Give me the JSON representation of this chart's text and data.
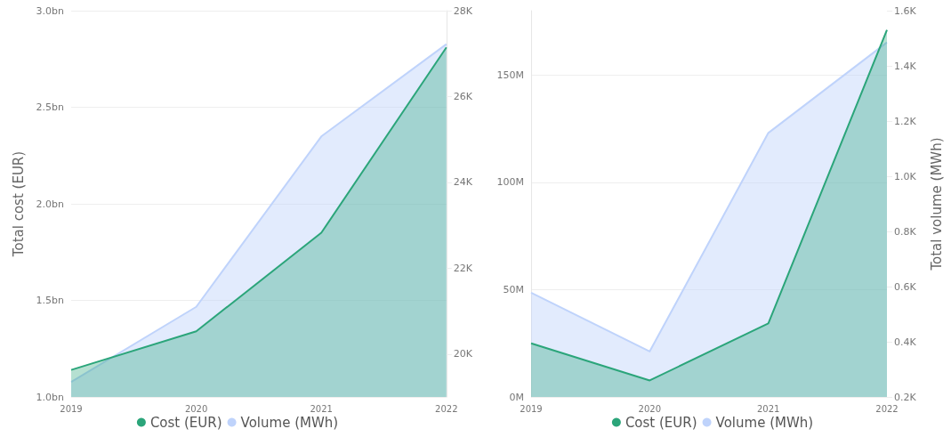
{
  "chart_data": [
    {
      "type": "area",
      "ylabel": "Total cost (EUR)",
      "categories": [
        "2019",
        "2020",
        "2021",
        "2022"
      ],
      "series": [
        {
          "name": "Cost (EUR)",
          "color": "#2ba57a",
          "values": [
            1140000000,
            1340000000,
            1850000000,
            2810000000
          ]
        },
        {
          "name": "Volume (MWh)",
          "color": "#bfd3fb",
          "axis": "y2",
          "values": [
            19350,
            21100,
            25070,
            27220
          ]
        }
      ],
      "ylim": [
        1000000000,
        3000000000
      ],
      "yticks": [
        {
          "value": 1000000000,
          "label": "1.0bn"
        },
        {
          "value": 1500000000,
          "label": "1.5bn"
        },
        {
          "value": 2000000000,
          "label": "2.0bn"
        },
        {
          "value": 2500000000,
          "label": "2.5bn"
        },
        {
          "value": 3000000000,
          "label": "3.0bn"
        }
      ],
      "y2lim": [
        19000,
        28000
      ],
      "y2ticks": [
        {
          "value": 20000,
          "label": "20K"
        },
        {
          "value": 22000,
          "label": "22K"
        },
        {
          "value": 24000,
          "label": "24K"
        },
        {
          "value": 26000,
          "label": "26K"
        },
        {
          "value": 28000,
          "label": "28K"
        }
      ],
      "grid": "y",
      "legend": "bottom"
    },
    {
      "type": "area",
      "y2label": "Total volume (MWh)",
      "categories": [
        "2019",
        "2020",
        "2021",
        "2022"
      ],
      "series": [
        {
          "name": "Cost (EUR)",
          "color": "#2ba57a",
          "values": [
            25000000,
            7700000,
            34300000,
            171000000
          ]
        },
        {
          "name": "Volume (MWh)",
          "color": "#bfd3fb",
          "axis": "y2",
          "values": [
            578,
            365,
            1157,
            1485
          ]
        }
      ],
      "ylim": [
        0,
        180000000
      ],
      "yticks": [
        {
          "value": 0,
          "label": "0M"
        },
        {
          "value": 50000000,
          "label": "50M"
        },
        {
          "value": 100000000,
          "label": "100M"
        },
        {
          "value": 150000000,
          "label": "150M"
        }
      ],
      "y2lim": [
        200,
        1600
      ],
      "y2ticks": [
        {
          "value": 200,
          "label": "0.2K"
        },
        {
          "value": 400,
          "label": "0.4K"
        },
        {
          "value": 600,
          "label": "0.6K"
        },
        {
          "value": 800,
          "label": "0.8K"
        },
        {
          "value": 1000,
          "label": "1.0K"
        },
        {
          "value": 1200,
          "label": "1.2K"
        },
        {
          "value": 1400,
          "label": "1.4K"
        },
        {
          "value": 1600,
          "label": "1.6K"
        }
      ],
      "grid": "y",
      "legend": "bottom"
    }
  ]
}
